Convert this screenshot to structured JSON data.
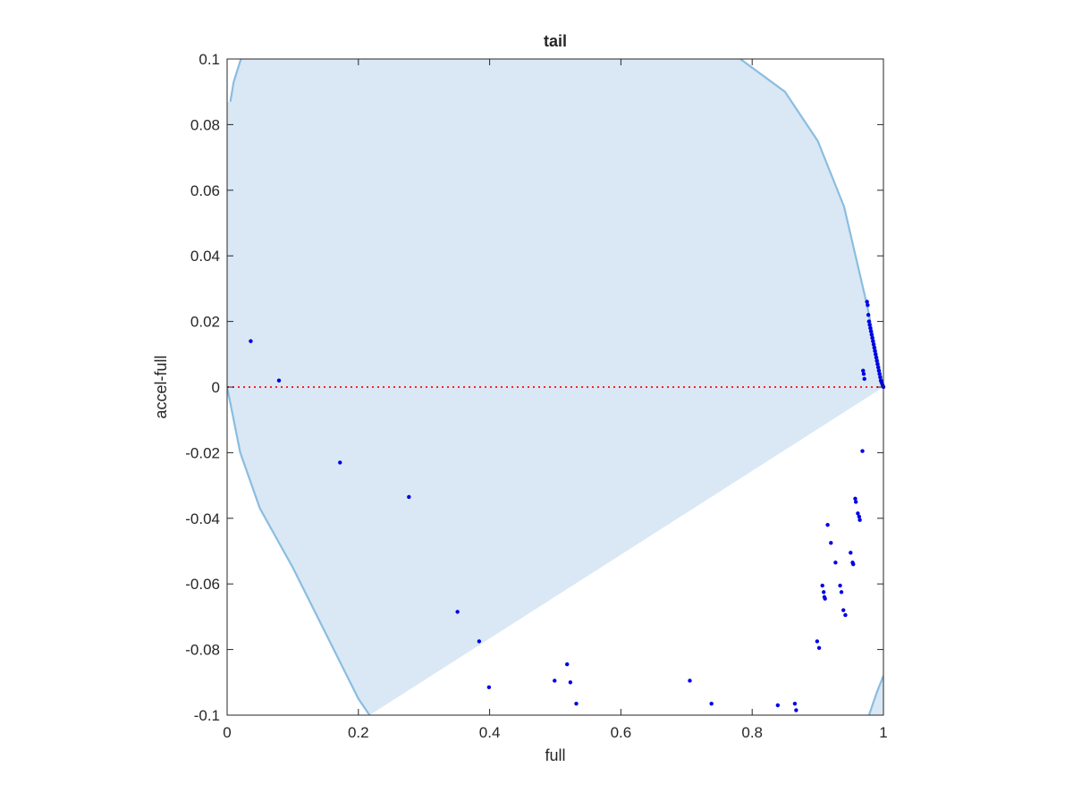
{
  "chart_data": {
    "type": "scatter",
    "title": "tail",
    "xlabel": "full",
    "ylabel": "accel-full",
    "xlim": [
      0,
      1
    ],
    "ylim": [
      -0.1,
      0.1
    ],
    "xticks": [
      0,
      0.2,
      0.4,
      0.6,
      0.8,
      1
    ],
    "xtick_labels": [
      "0",
      "0.2",
      "0.4",
      "0.6",
      "0.8",
      "1"
    ],
    "yticks": [
      -0.1,
      -0.08,
      -0.06,
      -0.04,
      -0.02,
      0,
      0.02,
      0.04,
      0.06,
      0.08,
      0.1
    ],
    "ytick_labels": [
      "-0.1",
      "-0.08",
      "-0.06",
      "-0.04",
      "-0.02",
      "0",
      "0.02",
      "0.04",
      "0.06",
      "0.08",
      "0.1"
    ],
    "grid": false,
    "colors": {
      "points": "#0000e6",
      "region_fill": "#d9e8f4",
      "region_edge": "#8abde0",
      "zero_line": "#ff2222",
      "axes": "#262626"
    },
    "shaded_region": {
      "left_boundary": [
        [
          0.005,
          0.087
        ],
        [
          0.01,
          0.093
        ],
        [
          0.021,
          0.1
        ]
      ],
      "left_lower_boundary": [
        [
          0.0,
          0.0
        ],
        [
          0.02,
          -0.02
        ],
        [
          0.05,
          -0.037
        ],
        [
          0.1,
          -0.055
        ],
        [
          0.15,
          -0.075
        ],
        [
          0.2,
          -0.095
        ],
        [
          0.217,
          -0.1
        ]
      ],
      "right_boundary": [
        [
          0.782,
          0.1
        ],
        [
          0.85,
          0.09
        ],
        [
          0.9,
          0.075
        ],
        [
          0.94,
          0.055
        ],
        [
          0.975,
          0.025
        ],
        [
          1.0,
          0.0
        ]
      ],
      "bottom_right_corner": [
        [
          0.978,
          -0.1
        ],
        [
          0.99,
          -0.093
        ],
        [
          1.0,
          -0.088
        ]
      ]
    },
    "zero_line": {
      "y": 0,
      "style": "dotted"
    },
    "points": [
      {
        "x": 0.036,
        "y": 0.014
      },
      {
        "x": 0.079,
        "y": 0.002
      },
      {
        "x": 0.172,
        "y": -0.023
      },
      {
        "x": 0.277,
        "y": -0.0335
      },
      {
        "x": 0.351,
        "y": -0.0685
      },
      {
        "x": 0.384,
        "y": -0.0775
      },
      {
        "x": 0.399,
        "y": -0.0915
      },
      {
        "x": 0.499,
        "y": -0.0895
      },
      {
        "x": 0.518,
        "y": -0.0845
      },
      {
        "x": 0.523,
        "y": -0.09
      },
      {
        "x": 0.532,
        "y": -0.0965
      },
      {
        "x": 0.705,
        "y": -0.0895
      },
      {
        "x": 0.738,
        "y": -0.0965
      },
      {
        "x": 0.839,
        "y": -0.097
      },
      {
        "x": 0.865,
        "y": -0.0965
      },
      {
        "x": 0.867,
        "y": -0.0985
      },
      {
        "x": 0.899,
        "y": -0.0775
      },
      {
        "x": 0.902,
        "y": -0.0795
      },
      {
        "x": 0.907,
        "y": -0.0605
      },
      {
        "x": 0.909,
        "y": -0.0625
      },
      {
        "x": 0.91,
        "y": -0.064
      },
      {
        "x": 0.911,
        "y": -0.0645
      },
      {
        "x": 0.915,
        "y": -0.042
      },
      {
        "x": 0.92,
        "y": -0.0475
      },
      {
        "x": 0.927,
        "y": -0.0535
      },
      {
        "x": 0.934,
        "y": -0.0605
      },
      {
        "x": 0.936,
        "y": -0.0625
      },
      {
        "x": 0.939,
        "y": -0.068
      },
      {
        "x": 0.942,
        "y": -0.0695
      },
      {
        "x": 0.95,
        "y": -0.0505
      },
      {
        "x": 0.953,
        "y": -0.0535
      },
      {
        "x": 0.954,
        "y": -0.054
      },
      {
        "x": 0.957,
        "y": -0.034
      },
      {
        "x": 0.958,
        "y": -0.035
      },
      {
        "x": 0.961,
        "y": -0.0385
      },
      {
        "x": 0.963,
        "y": -0.0395
      },
      {
        "x": 0.964,
        "y": -0.0405
      },
      {
        "x": 0.968,
        "y": -0.0195
      },
      {
        "x": 0.969,
        "y": 0.005
      },
      {
        "x": 0.97,
        "y": 0.004
      },
      {
        "x": 0.971,
        "y": 0.0025
      },
      {
        "x": 0.975,
        "y": 0.026
      },
      {
        "x": 0.976,
        "y": 0.025
      },
      {
        "x": 0.977,
        "y": 0.022
      },
      {
        "x": 0.978,
        "y": 0.02
      },
      {
        "x": 0.979,
        "y": 0.019
      },
      {
        "x": 0.98,
        "y": 0.018
      },
      {
        "x": 0.981,
        "y": 0.017
      },
      {
        "x": 0.982,
        "y": 0.016
      },
      {
        "x": 0.983,
        "y": 0.015
      },
      {
        "x": 0.984,
        "y": 0.014
      },
      {
        "x": 0.985,
        "y": 0.013
      },
      {
        "x": 0.986,
        "y": 0.012
      },
      {
        "x": 0.987,
        "y": 0.011
      },
      {
        "x": 0.988,
        "y": 0.01
      },
      {
        "x": 0.989,
        "y": 0.009
      },
      {
        "x": 0.99,
        "y": 0.008
      },
      {
        "x": 0.991,
        "y": 0.007
      },
      {
        "x": 0.992,
        "y": 0.006
      },
      {
        "x": 0.993,
        "y": 0.005
      },
      {
        "x": 0.994,
        "y": 0.004
      },
      {
        "x": 0.995,
        "y": 0.003
      },
      {
        "x": 0.996,
        "y": 0.002
      },
      {
        "x": 0.997,
        "y": 0.0015
      },
      {
        "x": 0.998,
        "y": 0.001
      },
      {
        "x": 0.999,
        "y": 0.0005
      },
      {
        "x": 1.0,
        "y": 0.0
      }
    ]
  }
}
